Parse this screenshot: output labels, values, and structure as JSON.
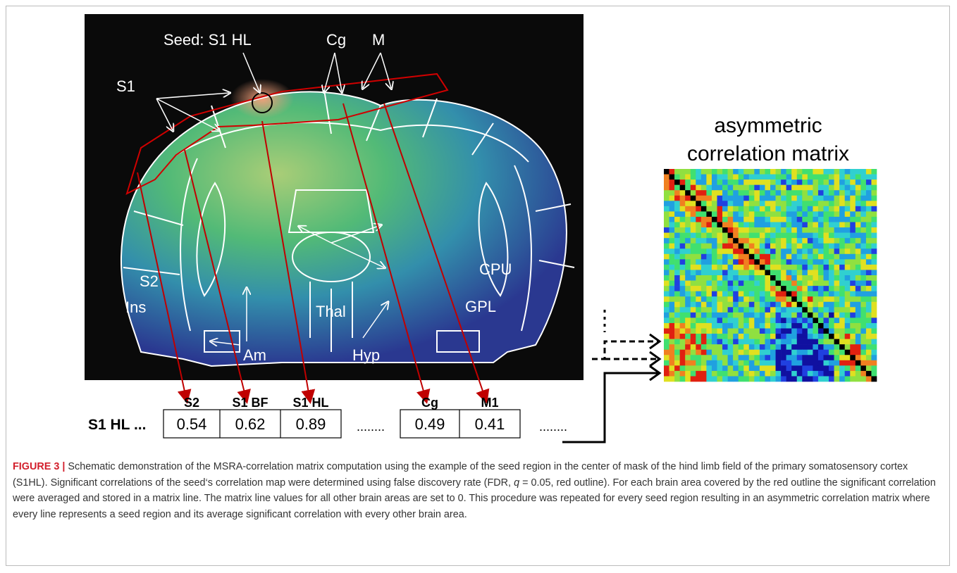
{
  "figure": {
    "brain_labels": {
      "seed": "Seed: S1 HL",
      "cg": "Cg",
      "m": "M",
      "s1": "S1",
      "s2": "S2",
      "ins": "Ins",
      "cpu": "CPU",
      "gpl": "GPL",
      "thal": "Thal",
      "am": "Am",
      "hyp": "Hyp"
    },
    "matrix_title": [
      "asymmetric",
      "correlation matrix"
    ],
    "row": {
      "label": "S1 HL ...",
      "headers": [
        "S2",
        "S1 BF",
        "S1 HL",
        "Cg",
        "M1"
      ],
      "values": [
        "0.54",
        "0.62",
        "0.89",
        "0.49",
        "0.41"
      ],
      "ellipses": [
        "........",
        "........"
      ]
    }
  },
  "caption": {
    "label": "FIGURE 3 |",
    "text_before": " Schematic demonstration of the MSRA-correlation matrix computation using the example of the seed region in the center of mask of the hind limb field of the primary somatosensory cortex (S1HL). Significant correlations of the seed‘s correlation map were determined using false discovery rate (FDR, ",
    "q": "q",
    "text_after": " = 0.05, red outline). For each brain area covered by the red outline the significant correlation were averaged and stored in a matrix line. The matrix line values for all other brain areas are set to 0. This procedure was repeated for every seed region resulting in an asymmetric correlation matrix where every line represents a seed region and its average significant correlation with every other brain area."
  }
}
